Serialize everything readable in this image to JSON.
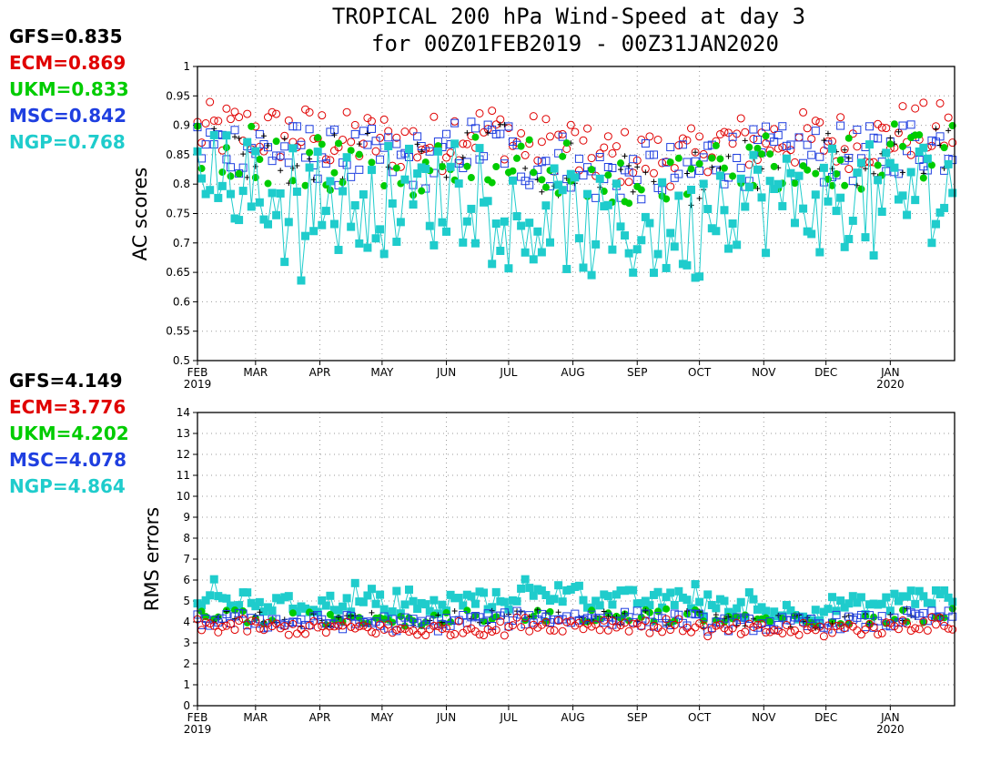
{
  "title_line1": "TROPICAL 200 hPa Wind-Speed at day 3",
  "title_line2": "for 00Z01FEB2019 - 00Z31JAN2020",
  "colors": {
    "GFS": "#000000",
    "ECM": "#e00000",
    "UKM": "#00cc00",
    "MSC": "#1f3fe0",
    "NGP": "#1fcccc"
  },
  "chart_data": [
    {
      "type": "line",
      "ylabel": "AC scores",
      "ylim": [
        0.5,
        1
      ],
      "yticks": [
        "0.5",
        "0.55",
        "0.6",
        "0.65",
        "0.7",
        "0.75",
        "0.8",
        "0.85",
        "0.9",
        "0.95",
        "1"
      ],
      "xlabel": "",
      "x_ticks": [
        "FEB",
        "MAR",
        "APR",
        "MAY",
        "JUN",
        "JUL",
        "AUG",
        "SEP",
        "OCT",
        "NOV",
        "DEC",
        "JAN"
      ],
      "x_years": [
        {
          "month": "FEB",
          "label": "2019"
        },
        {
          "month": "JAN",
          "label": "2020"
        }
      ],
      "grid": true,
      "legend": [
        {
          "label": "GFS=0.835",
          "model": "GFS"
        },
        {
          "label": "ECM=0.869",
          "model": "ECM"
        },
        {
          "label": "UKM=0.833",
          "model": "UKM"
        },
        {
          "label": "MSC=0.842",
          "model": "MSC"
        },
        {
          "label": "NGP=0.768",
          "model": "NGP"
        }
      ],
      "series": [
        {
          "name": "ECM",
          "marker": "open-circle",
          "mean": 0.869,
          "monthly": [
            0.89,
            0.885,
            0.875,
            0.87,
            0.89,
            0.87,
            0.845,
            0.845,
            0.87,
            0.875,
            0.875,
            0.89
          ]
        },
        {
          "name": "MSC",
          "marker": "open-square",
          "mean": 0.842,
          "monthly": [
            0.865,
            0.855,
            0.845,
            0.84,
            0.865,
            0.84,
            0.815,
            0.82,
            0.845,
            0.85,
            0.85,
            0.865
          ]
        },
        {
          "name": "GFS",
          "marker": "plus",
          "mean": 0.835,
          "monthly": [
            0.86,
            0.85,
            0.84,
            0.83,
            0.855,
            0.83,
            0.805,
            0.81,
            0.84,
            0.845,
            0.845,
            0.855
          ]
        },
        {
          "name": "UKM",
          "marker": "filled-circle",
          "mean": 0.833,
          "monthly": [
            0.86,
            0.845,
            0.835,
            0.83,
            0.85,
            0.83,
            0.8,
            0.81,
            0.835,
            0.84,
            0.84,
            0.855
          ]
        },
        {
          "name": "NGP",
          "marker": "filled-square",
          "mean": 0.768,
          "monthly": [
            0.8,
            0.78,
            0.77,
            0.78,
            0.82,
            0.74,
            0.72,
            0.72,
            0.78,
            0.77,
            0.78,
            0.79
          ]
        }
      ]
    },
    {
      "type": "line",
      "ylabel": "RMS errors",
      "ylim": [
        0,
        14
      ],
      "yticks": [
        "0",
        "1",
        "2",
        "3",
        "4",
        "5",
        "6",
        "7",
        "8",
        "9",
        "10",
        "11",
        "12",
        "13",
        "14"
      ],
      "xlabel": "",
      "x_ticks": [
        "FEB",
        "MAR",
        "APR",
        "MAY",
        "JUN",
        "JUL",
        "AUG",
        "SEP",
        "OCT",
        "NOV",
        "DEC",
        "JAN"
      ],
      "x_years": [
        {
          "month": "FEB",
          "label": "2019"
        },
        {
          "month": "JAN",
          "label": "2020"
        }
      ],
      "grid": true,
      "legend": [
        {
          "label": "GFS=4.149",
          "model": "GFS"
        },
        {
          "label": "ECM=3.776",
          "model": "ECM"
        },
        {
          "label": "UKM=4.202",
          "model": "UKM"
        },
        {
          "label": "MSC=4.078",
          "model": "MSC"
        },
        {
          "label": "NGP=4.864",
          "model": "NGP"
        }
      ],
      "series": [
        {
          "name": "NGP",
          "marker": "filled-square",
          "mean": 4.864,
          "monthly": [
            5.0,
            4.8,
            4.9,
            4.7,
            5.0,
            5.3,
            5.1,
            5.0,
            4.6,
            4.5,
            4.8,
            5.2
          ]
        },
        {
          "name": "UKM",
          "marker": "filled-circle",
          "mean": 4.202,
          "monthly": [
            4.3,
            4.2,
            4.2,
            4.1,
            4.2,
            4.3,
            4.3,
            4.3,
            4.1,
            4.1,
            4.2,
            4.3
          ]
        },
        {
          "name": "GFS",
          "marker": "plus",
          "mean": 4.149,
          "monthly": [
            4.2,
            4.1,
            4.1,
            4.0,
            4.2,
            4.3,
            4.2,
            4.2,
            4.0,
            4.0,
            4.1,
            4.3
          ]
        },
        {
          "name": "MSC",
          "marker": "open-square",
          "mean": 4.078,
          "monthly": [
            4.1,
            4.0,
            4.0,
            3.9,
            4.1,
            4.2,
            4.2,
            4.1,
            3.9,
            3.9,
            4.0,
            4.2
          ]
        },
        {
          "name": "ECM",
          "marker": "open-circle",
          "mean": 3.776,
          "monthly": [
            3.8,
            3.7,
            3.7,
            3.6,
            3.7,
            3.9,
            3.9,
            3.8,
            3.6,
            3.6,
            3.7,
            3.9
          ]
        }
      ]
    }
  ]
}
